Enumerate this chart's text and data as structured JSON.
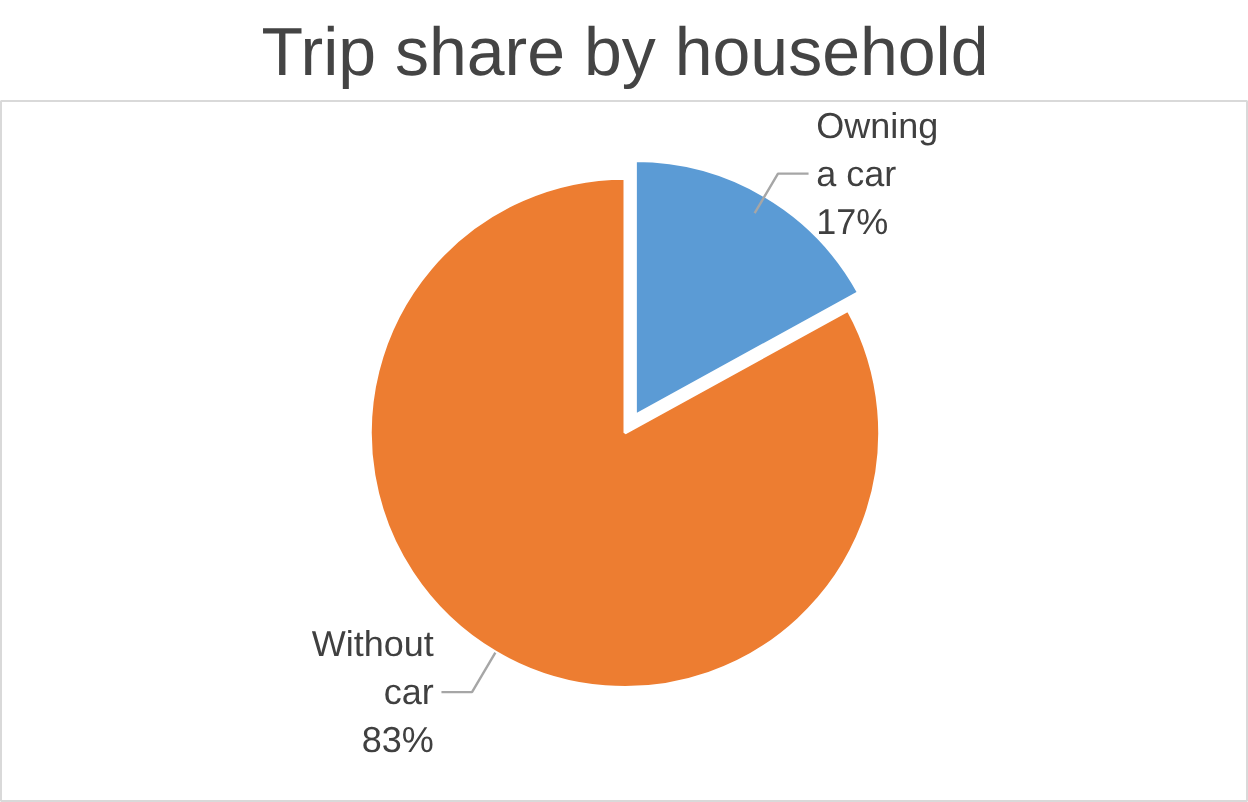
{
  "chart_data": {
    "type": "pie",
    "title": "Trip share by household",
    "categories": [
      "Owning a car",
      "Without car"
    ],
    "values": [
      17,
      83
    ],
    "colors": [
      "#5b9bd5",
      "#ed7d31"
    ],
    "value_labels": [
      "17%",
      "83%"
    ]
  }
}
